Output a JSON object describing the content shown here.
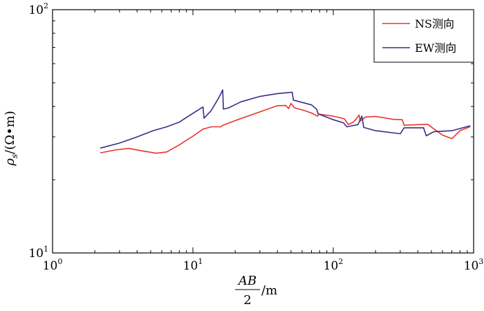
{
  "chart_data": {
    "type": "line",
    "x_scale": "log",
    "y_scale": "log",
    "xlim": [
      1,
      1000
    ],
    "ylim": [
      10,
      100
    ],
    "grid": false,
    "legend_position": "top-right",
    "x_ticks": [
      {
        "value": 1,
        "base": "10",
        "exp": "0"
      },
      {
        "value": 10,
        "base": "10",
        "exp": "1"
      },
      {
        "value": 100,
        "base": "10",
        "exp": "2"
      },
      {
        "value": 1000,
        "base": "10",
        "exp": "3"
      }
    ],
    "y_ticks": [
      {
        "value": 10,
        "base": "10",
        "exp": "1"
      },
      {
        "value": 100,
        "base": "10",
        "exp": "2"
      }
    ],
    "xlabel": {
      "numerator": "AB",
      "denominator": "2",
      "unit": "/m"
    },
    "ylabel": "ρs/(Ω•m)",
    "series": [
      {
        "name": "NS测向",
        "color": "#e8322b",
        "points": [
          [
            2.2,
            25.8
          ],
          [
            2.8,
            26.5
          ],
          [
            3.5,
            26.9
          ],
          [
            4.3,
            26.3
          ],
          [
            5.5,
            25.7
          ],
          [
            6.5,
            26.0
          ],
          [
            8.0,
            27.8
          ],
          [
            10.0,
            30.2
          ],
          [
            11.8,
            32.3
          ],
          [
            13.5,
            33.0
          ],
          [
            15.8,
            33.0
          ],
          [
            16.2,
            33.4
          ],
          [
            20,
            35.0
          ],
          [
            30,
            38.0
          ],
          [
            40,
            40.3
          ],
          [
            46,
            40.4
          ],
          [
            48,
            39.2
          ],
          [
            50,
            41.2
          ],
          [
            53,
            39.5
          ],
          [
            62,
            38.5
          ],
          [
            70,
            37.6
          ],
          [
            77,
            36.5
          ],
          [
            79,
            37.2
          ],
          [
            100,
            36.5
          ],
          [
            120,
            35.6
          ],
          [
            128,
            33.7
          ],
          [
            140,
            34.6
          ],
          [
            153,
            36.9
          ],
          [
            155,
            34.8
          ],
          [
            170,
            36.2
          ],
          [
            200,
            36.4
          ],
          [
            270,
            35.4
          ],
          [
            310,
            35.3
          ],
          [
            320,
            33.5
          ],
          [
            470,
            33.8
          ],
          [
            600,
            30.5
          ],
          [
            700,
            29.5
          ],
          [
            800,
            31.8
          ],
          [
            940,
            33.0
          ]
        ]
      },
      {
        "name": "EW测向",
        "color": "#3b2a86",
        "points": [
          [
            2.2,
            27.0
          ],
          [
            3.0,
            28.3
          ],
          [
            4.0,
            30.0
          ],
          [
            5.2,
            31.8
          ],
          [
            6.5,
            33.0
          ],
          [
            8.0,
            34.5
          ],
          [
            10.0,
            37.5
          ],
          [
            11.8,
            39.8
          ],
          [
            12.0,
            35.8
          ],
          [
            13.5,
            38.5
          ],
          [
            15.3,
            43.5
          ],
          [
            16.3,
            46.8
          ],
          [
            16.5,
            39.0
          ],
          [
            18.0,
            39.5
          ],
          [
            22,
            41.8
          ],
          [
            30,
            44.0
          ],
          [
            40,
            45.2
          ],
          [
            51,
            45.8
          ],
          [
            52,
            42.5
          ],
          [
            70,
            40.6
          ],
          [
            76,
            39.0
          ],
          [
            78,
            37.3
          ],
          [
            100,
            35.3
          ],
          [
            118,
            34.3
          ],
          [
            125,
            33.0
          ],
          [
            150,
            33.7
          ],
          [
            160,
            36.5
          ],
          [
            165,
            32.8
          ],
          [
            200,
            31.8
          ],
          [
            300,
            30.9
          ],
          [
            320,
            32.7
          ],
          [
            440,
            32.7
          ],
          [
            460,
            30.3
          ],
          [
            520,
            31.5
          ],
          [
            700,
            31.8
          ],
          [
            940,
            33.3
          ]
        ]
      }
    ]
  }
}
